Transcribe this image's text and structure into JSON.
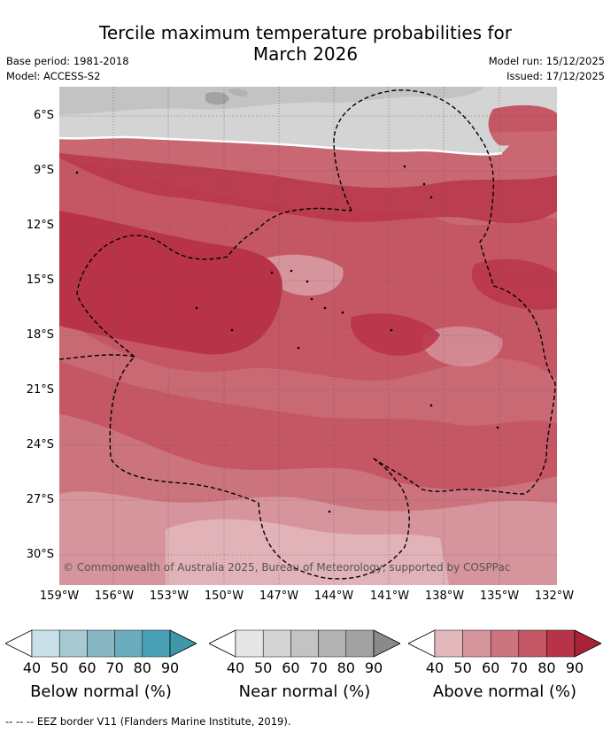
{
  "title": {
    "line1": "Tercile maximum temperature probabilities for",
    "line2": "March 2026"
  },
  "meta": {
    "base_period": "Base period: 1981-2018",
    "model": "Model: ACCESS-S2",
    "model_run": "Model run: 15/12/2025",
    "issued": "Issued: 17/12/2025"
  },
  "axes": {
    "lat_labels": [
      "6°S",
      "9°S",
      "12°S",
      "15°S",
      "18°S",
      "21°S",
      "24°S",
      "27°S",
      "30°S"
    ],
    "lon_labels": [
      "159°W",
      "156°W",
      "153°W",
      "150°W",
      "147°W",
      "144°W",
      "141°W",
      "138°W",
      "135°W",
      "132°W"
    ]
  },
  "copyright": "© Commonwealth of Australia 2025, Bureau of Meteorology, supported by COSPPac",
  "colorbars": [
    {
      "title": "Below normal (%)",
      "ticks": [
        "40",
        "50",
        "60",
        "70",
        "80",
        "90"
      ],
      "colors": [
        "#ffffff",
        "#c9e0e8",
        "#a6c9d2",
        "#88b7c4",
        "#6aacbd",
        "#47a0b4",
        "#3f97ab"
      ]
    },
    {
      "title": "Near normal (%)",
      "ticks": [
        "40",
        "50",
        "60",
        "70",
        "80",
        "90"
      ],
      "colors": [
        "#ffffff",
        "#e6e6e6",
        "#d4d4d4",
        "#c3c3c3",
        "#b3b3b3",
        "#a2a2a2",
        "#8a8a8a"
      ]
    },
    {
      "title": "Above normal (%)",
      "ticks": [
        "40",
        "50",
        "60",
        "70",
        "80",
        "90"
      ],
      "colors": [
        "#ffffff",
        "#e3b8bd",
        "#d6959c",
        "#cc747e",
        "#c55765",
        "#b83347",
        "#a8233a"
      ]
    }
  ],
  "footer": "--  --  -- EEZ border V11 (Flanders Marine Institute, 2019)."
}
